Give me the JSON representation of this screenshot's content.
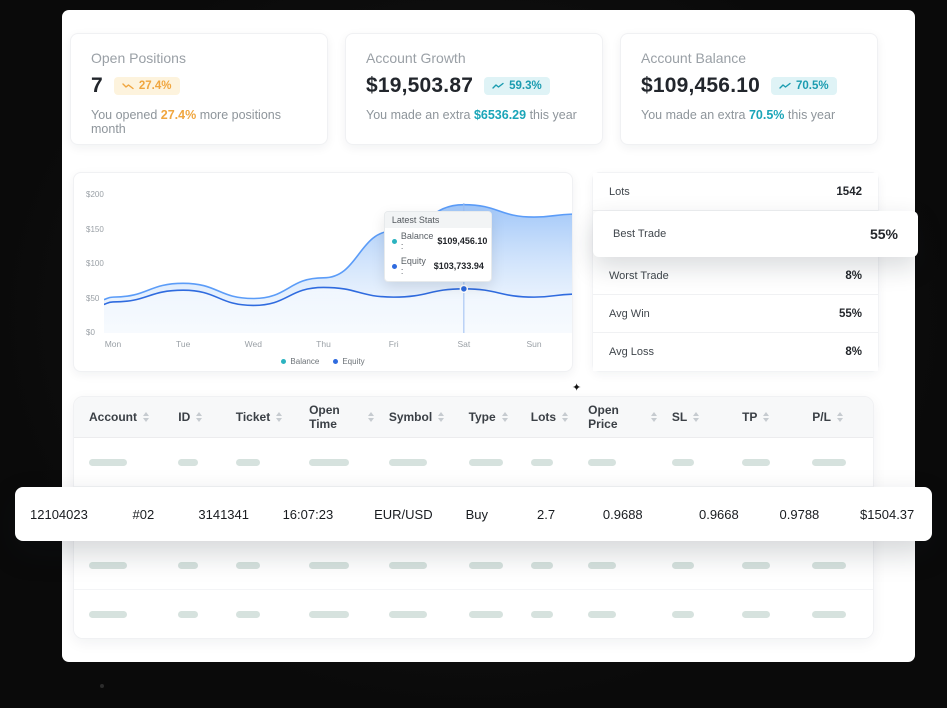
{
  "cards": [
    {
      "title": "Open Positions",
      "value": "7",
      "badge": {
        "label": "27.4%",
        "icon": "trend-down-icon",
        "fg": "#f0a63f",
        "bg": "#fdf3dd"
      },
      "subtitle": {
        "prefix": "You opened ",
        "highlight": "27.4%",
        "suffix": " more positions month",
        "highlight_color": "#f0a63f"
      }
    },
    {
      "title": "Account Growth",
      "value": "$19,503.87",
      "badge": {
        "label": "59.3%",
        "icon": "trend-up-icon",
        "fg": "#1b9cb0",
        "bg": "#dff3f6"
      },
      "subtitle": {
        "prefix": "You made an extra ",
        "highlight": "$6536.29",
        "suffix": " this year",
        "highlight_color": "#1aa5b8"
      }
    },
    {
      "title": "Account Balance",
      "value": "$109,456.10",
      "badge": {
        "label": "70.5%",
        "icon": "trend-up-icon",
        "fg": "#1b9cb0",
        "bg": "#dff3f6"
      },
      "subtitle": {
        "prefix": "You made an extra ",
        "highlight": "70.5%",
        "suffix": " this year",
        "highlight_color": "#1aa5b8"
      }
    }
  ],
  "chart_data": {
    "type": "area",
    "x": [
      "Mon",
      "Tue",
      "Wed",
      "Thu",
      "Fri",
      "Sat",
      "Sun"
    ],
    "yticks": [
      "$0",
      "$50",
      "$100",
      "$150",
      "$200"
    ],
    "ylim": [
      0,
      200
    ],
    "series": [
      {
        "name": "Balance",
        "color": "#5b9cf8",
        "values": [
          52,
          72,
          50,
          80,
          148,
          186,
          168
        ]
      },
      {
        "name": "Equity",
        "color": "#2f6bdf",
        "values": [
          45,
          62,
          40,
          66,
          52,
          64,
          52
        ]
      }
    ],
    "marker_x": "Sat",
    "tooltip": {
      "title": "Latest Stats",
      "items": [
        {
          "label": "Balance :",
          "value": "$109,456.10",
          "dot": "#2bb3c0"
        },
        {
          "label": "Equity :",
          "value": "$103,733.94",
          "dot": "#2f6bdf"
        }
      ]
    },
    "legend": [
      {
        "label": "Balance",
        "dot": "#2bb3c0"
      },
      {
        "label": "Equity",
        "dot": "#2f6bdf"
      }
    ]
  },
  "side_stats": [
    {
      "label": "Lots",
      "value": "1542",
      "elevated": false
    },
    {
      "label": "Best Trade",
      "value": "55%",
      "elevated": true
    },
    {
      "label": "Worst Trade",
      "value": "8%",
      "elevated": false
    },
    {
      "label": "Avg Win",
      "value": "55%",
      "elevated": false
    },
    {
      "label": "Avg Loss",
      "value": "8%",
      "elevated": false
    }
  ],
  "table": {
    "columns": [
      "Account",
      "ID",
      "Ticket",
      "Open Time",
      "Symbol",
      "Type",
      "Lots",
      "Open Price",
      "SL",
      "TP",
      "P/L"
    ],
    "highlight_row": [
      "12104023",
      "#02",
      "3141341",
      "16:07:23",
      "EUR/USD",
      "Buy",
      "2.7",
      "0.9688",
      "0.9668",
      "0.9788",
      "$1504.37"
    ]
  }
}
